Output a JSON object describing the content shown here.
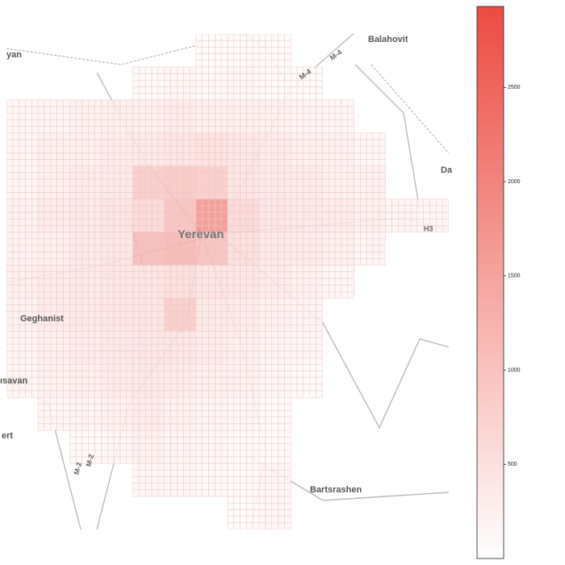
{
  "map": {
    "labels": [
      "Balahovit",
      "yan",
      "Da",
      "Yerevan",
      "H3",
      "M-4",
      "M-4",
      "Geghanist",
      "ısavan",
      "ert",
      "M-2",
      "M-2",
      "Bartsrashen"
    ],
    "heat": {
      "cmap": [
        "#ffffff",
        "#ec4b41"
      ],
      "grid": [
        [
          null,
          null,
          null,
          null,
          null,
          null,
          80,
          100,
          80,
          null,
          null,
          null,
          null,
          null
        ],
        [
          null,
          null,
          null,
          null,
          100,
          150,
          120,
          150,
          100,
          80,
          null,
          null,
          null,
          null
        ],
        [
          150,
          200,
          250,
          300,
          300,
          350,
          300,
          300,
          250,
          200,
          150,
          null,
          null,
          null
        ],
        [
          200,
          300,
          300,
          350,
          400,
          500,
          550,
          450,
          350,
          300,
          250,
          150,
          null,
          null
        ],
        [
          200,
          300,
          350,
          400,
          900,
          1000,
          900,
          500,
          400,
          350,
          300,
          250,
          null,
          null
        ],
        [
          250,
          350,
          400,
          500,
          700,
          1100,
          1800,
          700,
          450,
          400,
          350,
          300,
          200,
          150
        ],
        [
          250,
          300,
          400,
          450,
          1200,
          1300,
          1100,
          600,
          400,
          350,
          300,
          200,
          null,
          null
        ],
        [
          300,
          350,
          400,
          450,
          500,
          600,
          500,
          450,
          350,
          250,
          150,
          null,
          null,
          null
        ],
        [
          250,
          350,
          400,
          450,
          500,
          900,
          400,
          350,
          250,
          200,
          null,
          null,
          null,
          null
        ],
        [
          200,
          300,
          350,
          400,
          450,
          450,
          350,
          300,
          200,
          150,
          null,
          null,
          null,
          null
        ],
        [
          150,
          250,
          300,
          350,
          400,
          350,
          300,
          250,
          150,
          100,
          null,
          null,
          null,
          null
        ],
        [
          null,
          150,
          200,
          250,
          350,
          250,
          200,
          150,
          100,
          null,
          null,
          null,
          null,
          null
        ],
        [
          null,
          null,
          100,
          150,
          250,
          200,
          150,
          100,
          80,
          null,
          null,
          null,
          null,
          null
        ],
        [
          null,
          null,
          null,
          null,
          150,
          150,
          120,
          100,
          150,
          null,
          null,
          null,
          null,
          null
        ],
        [
          null,
          null,
          null,
          null,
          null,
          null,
          null,
          80,
          150,
          null,
          null,
          null,
          null,
          null
        ]
      ],
      "clim": [
        0,
        2930
      ],
      "cticks": [
        500,
        1000,
        1500,
        2000,
        2500
      ]
    }
  }
}
